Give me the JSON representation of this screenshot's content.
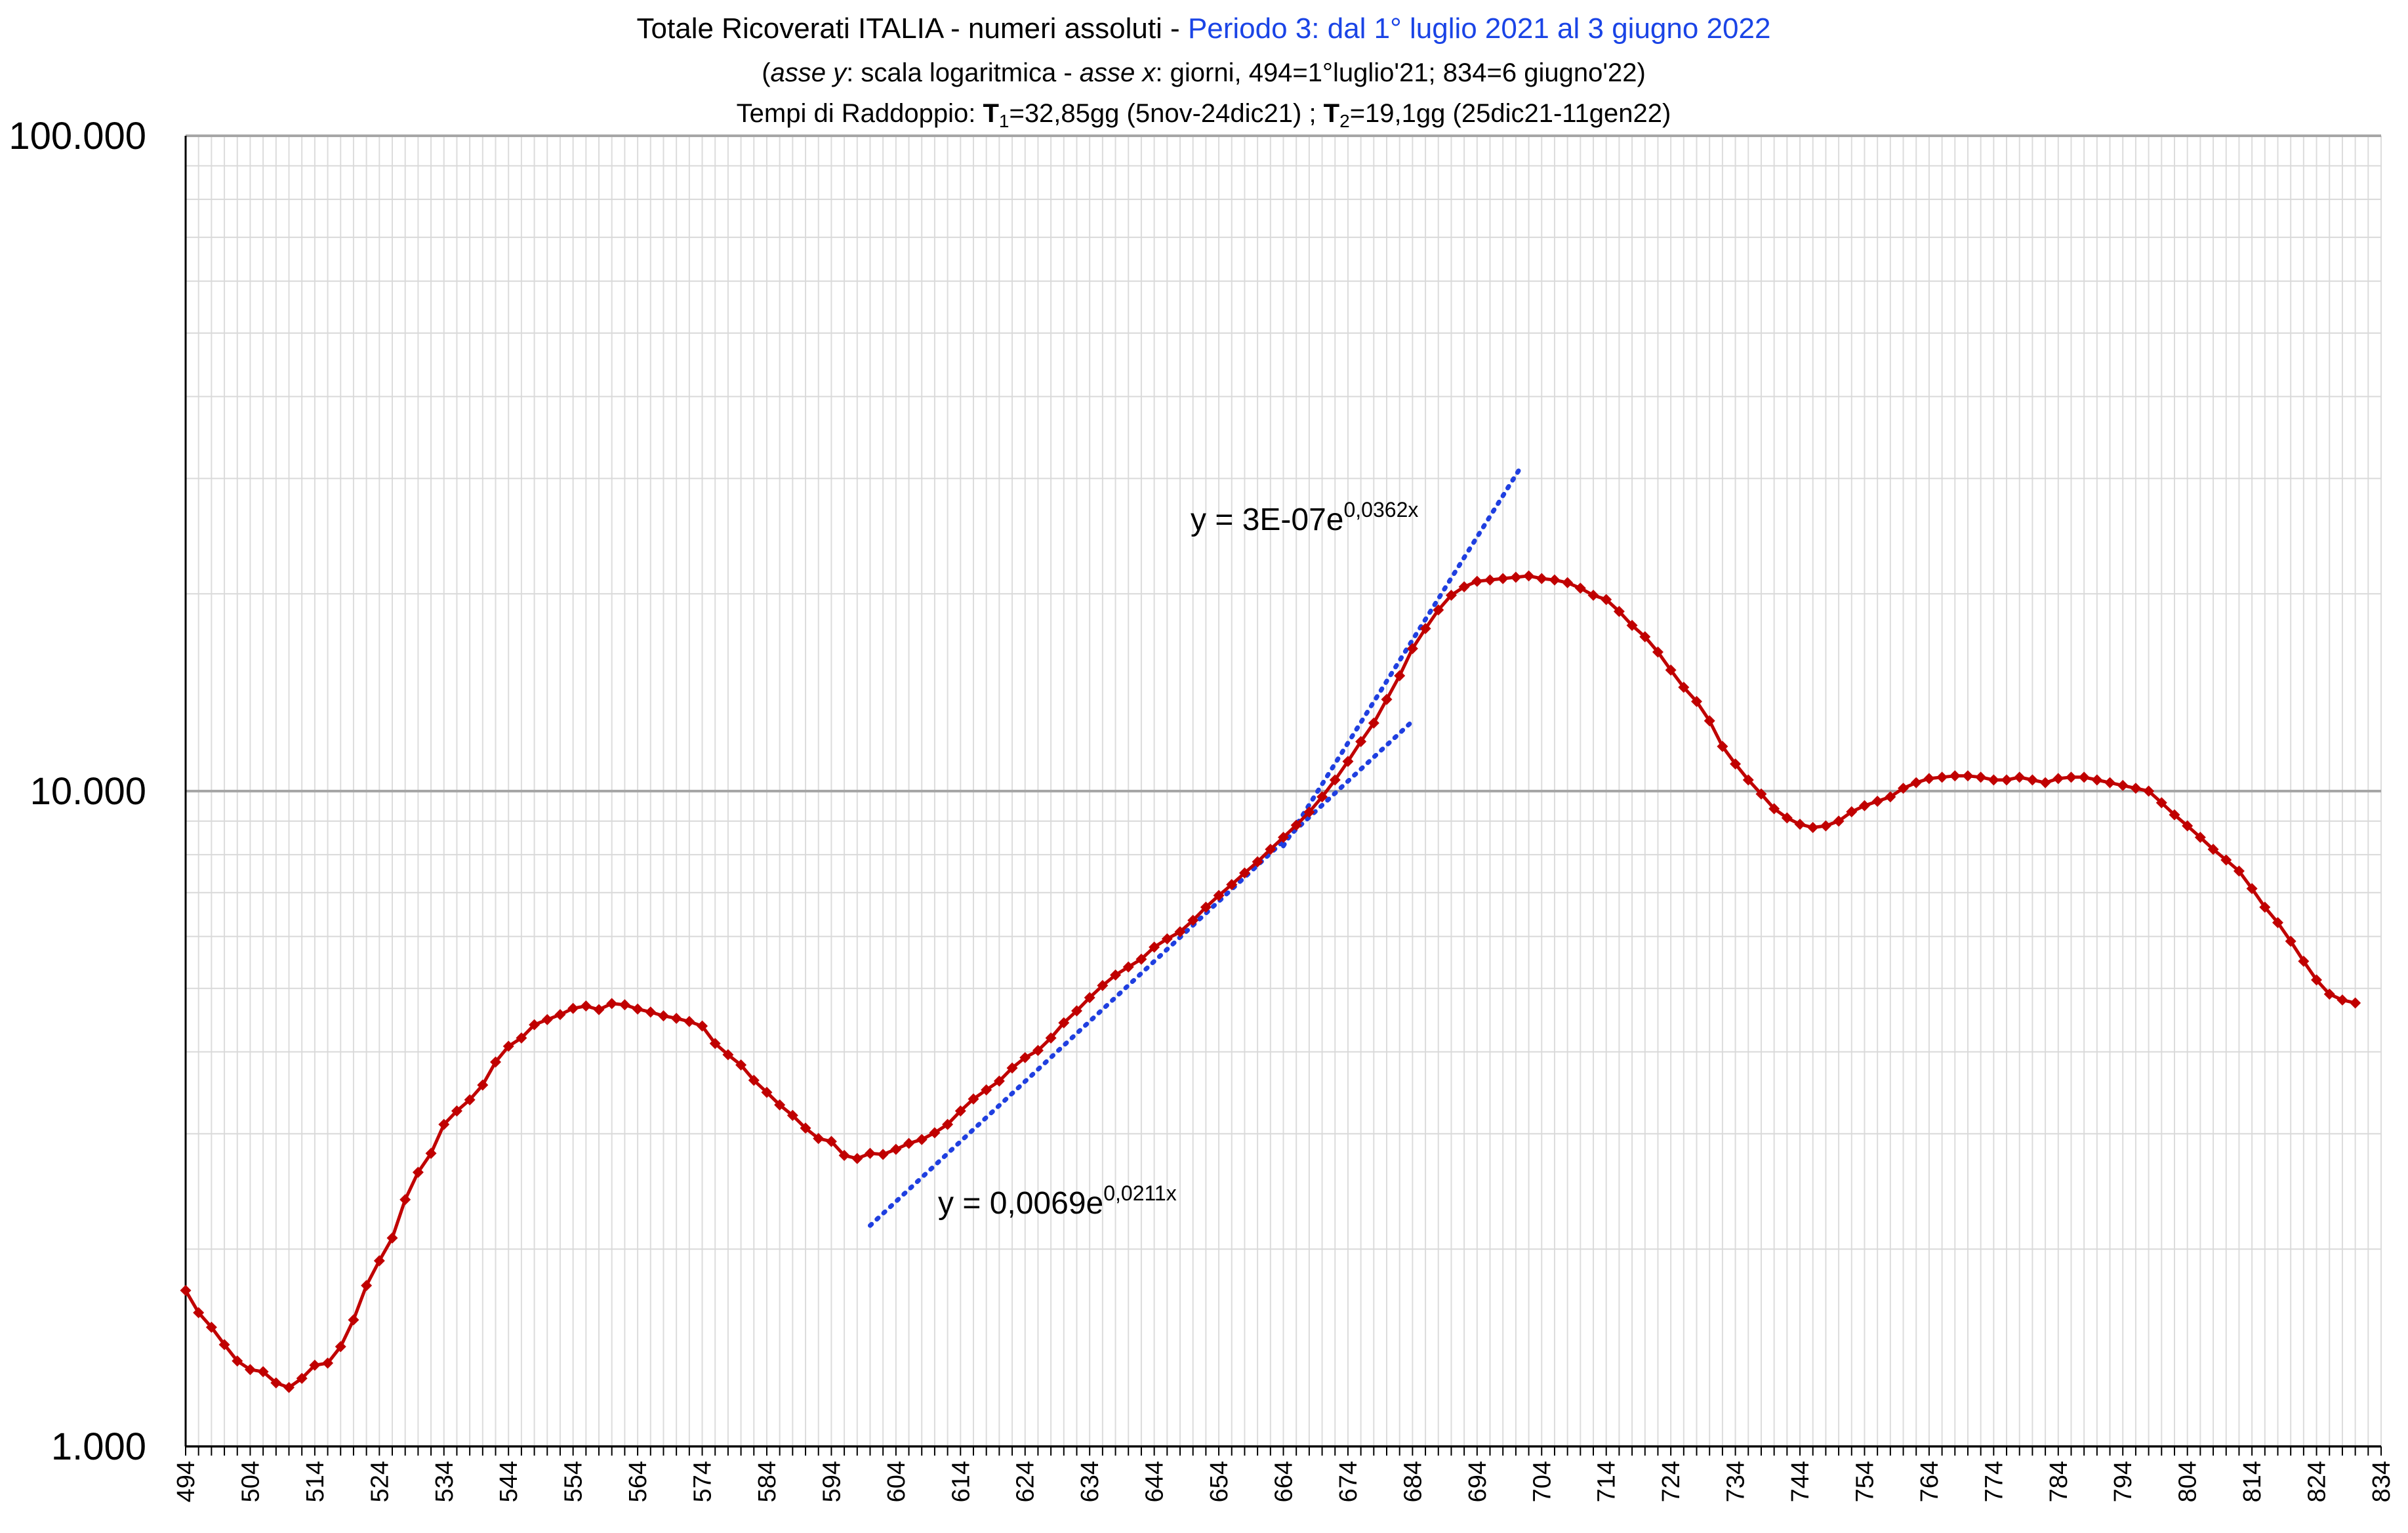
{
  "chart_data": {
    "type": "line",
    "title_parts": [
      "Totale Ricoverati ITALIA - numeri assoluti - ",
      "Periodo 3: dal 1° luglio 2021 al 3 giugno 2022"
    ],
    "subtitle": {
      "asse_y": "asse y",
      "part_a": ": scala logaritmica - ",
      "asse_x": "asse x",
      "part_b": ":  giorni, 494=1°luglio'21; 834=6 giugno'22)"
    },
    "doubling": {
      "label": "Tempi di Raddoppio:  ",
      "t1": "T",
      "t1_sub": "1",
      "t1_text": "=32,85gg (5nov-24dic21) ; ",
      "t2": "T",
      "t2_sub": "2",
      "t2_text": "=19,1gg (25dic21-11gen22)"
    },
    "yscale": "log",
    "ylim": [
      1000,
      100000
    ],
    "ytick_values": [
      1000,
      10000,
      100000
    ],
    "ytick_labels": [
      "1.000",
      "10.000",
      "100.000"
    ],
    "xlim": [
      494,
      834
    ],
    "xtick_labels": [
      "494",
      "504",
      "514",
      "524",
      "534",
      "544",
      "554",
      "564",
      "574",
      "584",
      "594",
      "604",
      "614",
      "624",
      "634",
      "644",
      "654",
      "664",
      "674",
      "684",
      "694",
      "704",
      "714",
      "724",
      "734",
      "744",
      "754",
      "764",
      "774",
      "784",
      "794",
      "804",
      "814",
      "824",
      "834"
    ],
    "grid": true,
    "series_color": "#c00000",
    "trend_color": "#1f3fe0",
    "series": [
      {
        "x": [
          494,
          496,
          498,
          500,
          502,
          504,
          506,
          508,
          510,
          512,
          514,
          516,
          518,
          520,
          522,
          524,
          526,
          528,
          530,
          532,
          534,
          536,
          538,
          540,
          542,
          544,
          546,
          548,
          550,
          552,
          554,
          556,
          558,
          560,
          562,
          564,
          566,
          568,
          570,
          572,
          574,
          576,
          578,
          580,
          582,
          584,
          586,
          588,
          590,
          592,
          594,
          596,
          598,
          600,
          602,
          604,
          606,
          608,
          610,
          612,
          614,
          616,
          618,
          620,
          622,
          624,
          626,
          628,
          630,
          632,
          634,
          636,
          638,
          640,
          642,
          644,
          646,
          648,
          650,
          652,
          654,
          656,
          658,
          660,
          662,
          664,
          666,
          668,
          670,
          672,
          674,
          676,
          678,
          680,
          682,
          684,
          686,
          688,
          690,
          692,
          694,
          696,
          698,
          700,
          702,
          704,
          706,
          708,
          710,
          712,
          714,
          716,
          718,
          720,
          722,
          724,
          726,
          728,
          730,
          732,
          734,
          736,
          738,
          740,
          742,
          744,
          746,
          748,
          750,
          752,
          754,
          756,
          758,
          760,
          762,
          764,
          766,
          768,
          770,
          772,
          774,
          776,
          778,
          780,
          782,
          784,
          786,
          788,
          790,
          792,
          794,
          796,
          798,
          800,
          802,
          804,
          806,
          808,
          810,
          812,
          814,
          816,
          818,
          820,
          822,
          824,
          826,
          828,
          830
        ],
        "y": [
          1730,
          1600,
          1520,
          1430,
          1350,
          1310,
          1300,
          1250,
          1230,
          1270,
          1330,
          1340,
          1420,
          1560,
          1760,
          1920,
          2080,
          2380,
          2620,
          2800,
          3100,
          3250,
          3380,
          3560,
          3860,
          4080,
          4200,
          4400,
          4480,
          4560,
          4660,
          4700,
          4640,
          4740,
          4720,
          4650,
          4600,
          4540,
          4500,
          4450,
          4380,
          4120,
          3960,
          3820,
          3620,
          3470,
          3320,
          3200,
          3060,
          2950,
          2920,
          2780,
          2750,
          2800,
          2790,
          2840,
          2900,
          2940,
          3010,
          3100,
          3250,
          3390,
          3500,
          3610,
          3780,
          3920,
          4020,
          4200,
          4430,
          4620,
          4840,
          5050,
          5240,
          5390,
          5540,
          5780,
          5950,
          6100,
          6350,
          6650,
          6930,
          7200,
          7500,
          7800,
          8150,
          8500,
          8870,
          9290,
          9800,
          10400,
          11100,
          11900,
          12700,
          13800,
          15000,
          16500,
          17700,
          18900,
          19900,
          20500,
          20900,
          21000,
          21100,
          21200,
          21300,
          21100,
          21000,
          20800,
          20400,
          19900,
          19600,
          18800,
          17900,
          17200,
          16300,
          15300,
          14400,
          13700,
          12800,
          11700,
          11000,
          10400,
          9900,
          9400,
          9100,
          8900,
          8800,
          8850,
          9000,
          9300,
          9500,
          9650,
          9800,
          10100,
          10300,
          10450,
          10500,
          10550,
          10550,
          10500,
          10400,
          10400,
          10500,
          10400,
          10300,
          10450,
          10500,
          10500,
          10400,
          10300,
          10200,
          10100,
          10000,
          9600,
          9200,
          8850,
          8500,
          8150,
          7850,
          7550,
          7100,
          6650,
          6300,
          5900,
          5500,
          5150,
          4900,
          4800,
          4750
        ]
      }
    ],
    "trendlines": [
      {
        "equation": "y = 0,0069e",
        "exponent": "0,0211x",
        "a": 0.0069,
        "b": 0.0211,
        "x_from": 600,
        "x_to": 684
      },
      {
        "equation": "y = 3E-07e",
        "exponent": "0,0362x",
        "a": 3e-07,
        "b": 0.0362,
        "x_from": 664,
        "x_to": 701
      }
    ]
  }
}
